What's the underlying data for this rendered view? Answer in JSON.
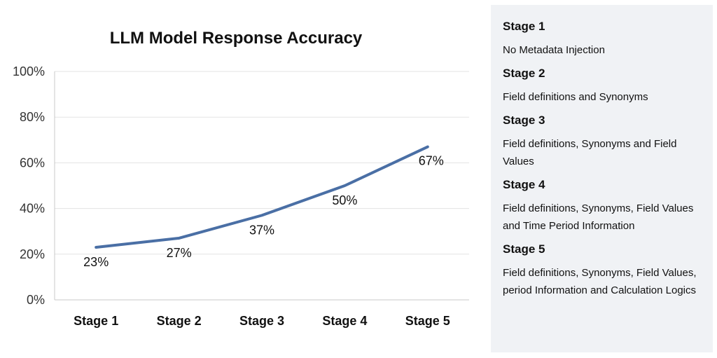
{
  "chart_data": {
    "type": "line",
    "title": "LLM Model Response Accuracy",
    "categories": [
      "Stage 1",
      "Stage 2",
      "Stage 3",
      "Stage 4",
      "Stage 5"
    ],
    "series": [
      {
        "values": [
          23,
          27,
          37,
          50,
          67
        ],
        "labels": [
          "23%",
          "27%",
          "37%",
          "50%",
          "67%"
        ],
        "color": "#4a6fa5"
      }
    ],
    "ylim": [
      0,
      100
    ],
    "yticks": [
      0,
      20,
      40,
      60,
      80,
      100
    ],
    "ytick_labels": [
      "0%",
      "20%",
      "40%",
      "60%",
      "80%",
      "100%"
    ],
    "grid": true,
    "legend": "right"
  },
  "legend_panel": {
    "items": [
      {
        "stage": "Stage 1",
        "description": "No Metadata Injection"
      },
      {
        "stage": "Stage 2",
        "description": "Field definitions and Synonyms"
      },
      {
        "stage": "Stage 3",
        "description": "Field definitions, Synonyms and Field Values"
      },
      {
        "stage": "Stage 4",
        "description": "Field definitions, Synonyms, Field Values and Time Period Information"
      },
      {
        "stage": "Stage 5",
        "description": "Field definitions, Synonyms, Field Values, period Information and Calculation Logics"
      }
    ]
  }
}
